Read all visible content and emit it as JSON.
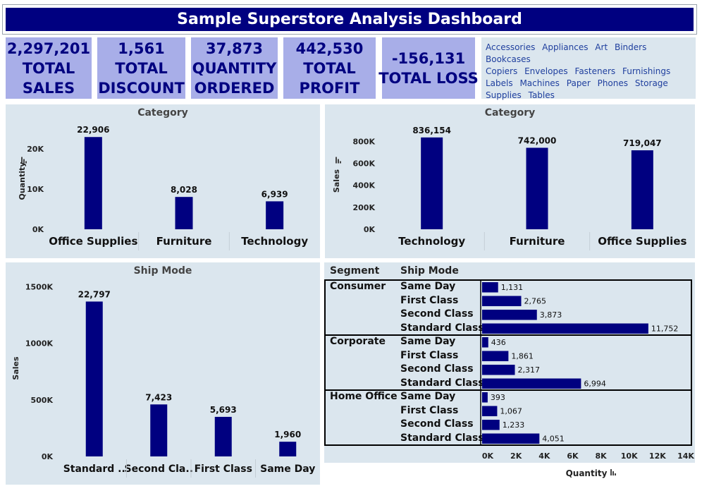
{
  "title": "Sample Superstore Analysis Dashboard",
  "kpis": [
    {
      "value": "2,297,201",
      "line1": "TOTAL",
      "line2": "SALES"
    },
    {
      "value": "1,561",
      "line1": "TOTAL",
      "line2": "DISCOUNT"
    },
    {
      "value": "37,873",
      "line1": "QUANTITY",
      "line2": "ORDERED"
    },
    {
      "value": "442,530",
      "line1": "TOTAL",
      "line2": "PROFIT"
    },
    {
      "value": "-156,131",
      "line1": "TOTAL LOSS",
      "line2": ""
    }
  ],
  "filters": [
    "Accessories",
    "Appliances",
    "Art",
    "Binders",
    "Bookcases",
    "Copiers",
    "Envelopes",
    "Fasteners",
    "Furnishings",
    "Labels",
    "Machines",
    "Paper",
    "Phones",
    "Storage",
    "Supplies",
    "Tables"
  ],
  "colors": {
    "bar": "#000080",
    "panel": "#dbe6ee",
    "kpi": "#a8aee8"
  },
  "chart_data": [
    {
      "type": "bar",
      "title": "Category",
      "xlabel": "",
      "ylabel": "Quantity",
      "categories": [
        "Office Supplies",
        "Furniture",
        "Technology"
      ],
      "values": [
        22906,
        8028,
        6939
      ],
      "labels": [
        "22,906",
        "8,028",
        "6,939"
      ],
      "ticks": [
        "0K",
        "10K",
        "20K"
      ],
      "tick_values": [
        0,
        10000,
        20000
      ],
      "ylim": [
        0,
        24000
      ]
    },
    {
      "type": "bar",
      "title": "Category",
      "xlabel": "",
      "ylabel": "Sales",
      "categories": [
        "Technology",
        "Furniture",
        "Office Supplies"
      ],
      "values": [
        836154,
        742000,
        719047
      ],
      "labels": [
        "836,154",
        "742,000",
        "719,047"
      ],
      "ticks": [
        "0K",
        "200K",
        "400K",
        "600K",
        "800K"
      ],
      "tick_values": [
        0,
        200000,
        400000,
        600000,
        800000
      ],
      "ylim": [
        0,
        880000
      ]
    },
    {
      "type": "bar",
      "title": "Ship Mode",
      "xlabel": "",
      "ylabel": "Sales",
      "categories": [
        "Standard ..",
        "Second Cla..",
        "First Class",
        "Same Day"
      ],
      "values": [
        1370000,
        460000,
        350000,
        130000
      ],
      "labels": [
        "22,797",
        "7,423",
        "5,693",
        "1,960"
      ],
      "ticks": [
        "0K",
        "500K",
        "1000K",
        "1500K"
      ],
      "tick_values": [
        0,
        500000,
        1000000,
        1500000
      ],
      "ylim": [
        0,
        1560000
      ]
    },
    {
      "type": "bar",
      "orientation": "horizontal",
      "header_segment": "Segment",
      "header_ship": "Ship Mode",
      "xlabel": "Quantity",
      "ticks": [
        "0K",
        "2K",
        "4K",
        "6K",
        "8K",
        "10K",
        "12K",
        "14K"
      ],
      "tick_values": [
        0,
        2000,
        4000,
        6000,
        8000,
        10000,
        12000,
        14000
      ],
      "xlim": [
        0,
        14000
      ],
      "groups": [
        {
          "segment": "Consumer",
          "rows": [
            {
              "ship": "Same Day",
              "value": 1131,
              "label": "1,131"
            },
            {
              "ship": "First Class",
              "value": 2765,
              "label": "2,765"
            },
            {
              "ship": "Second Class",
              "value": 3873,
              "label": "3,873"
            },
            {
              "ship": "Standard Class",
              "value": 11752,
              "label": "11,752"
            }
          ]
        },
        {
          "segment": "Corporate",
          "rows": [
            {
              "ship": "Same Day",
              "value": 436,
              "label": "436"
            },
            {
              "ship": "First Class",
              "value": 1861,
              "label": "1,861"
            },
            {
              "ship": "Second Class",
              "value": 2317,
              "label": "2,317"
            },
            {
              "ship": "Standard Class",
              "value": 6994,
              "label": "6,994"
            }
          ]
        },
        {
          "segment": "Home Office",
          "rows": [
            {
              "ship": "Same Day",
              "value": 393,
              "label": "393"
            },
            {
              "ship": "First Class",
              "value": 1067,
              "label": "1,067"
            },
            {
              "ship": "Second Class",
              "value": 1233,
              "label": "1,233"
            },
            {
              "ship": "Standard Class",
              "value": 4051,
              "label": "4,051"
            }
          ]
        }
      ]
    }
  ]
}
